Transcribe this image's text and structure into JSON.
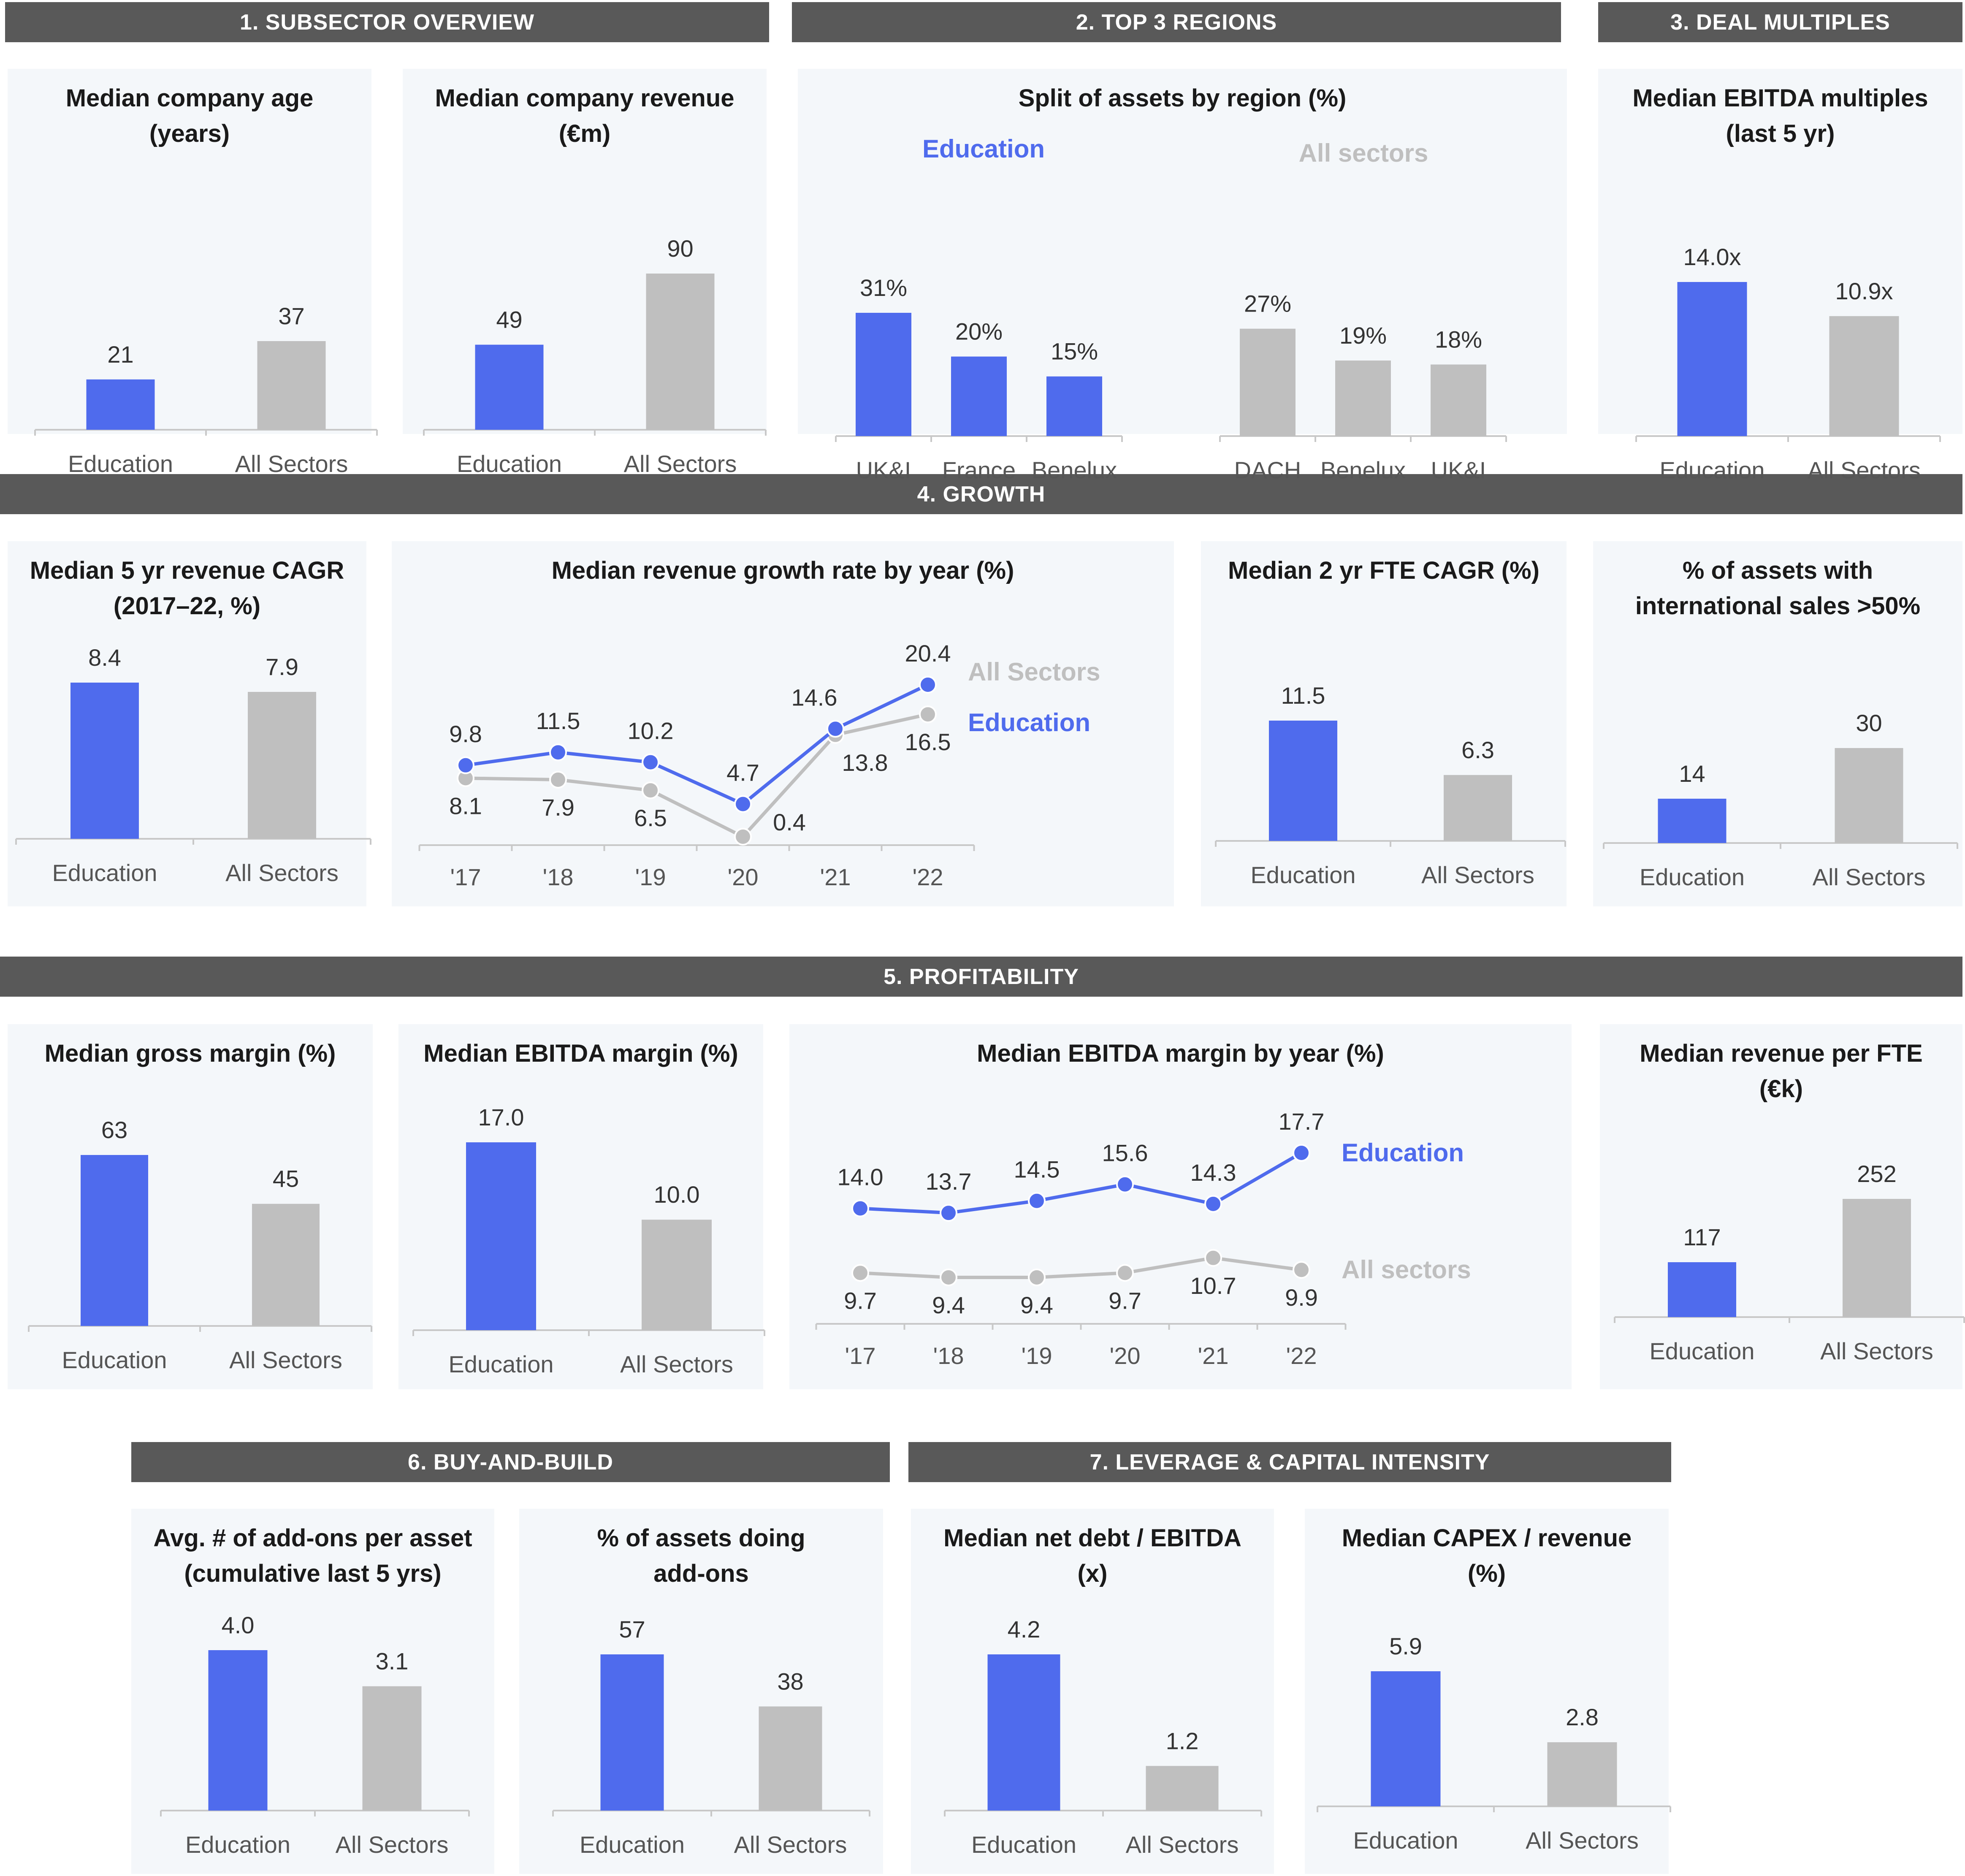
{
  "colors": {
    "education": "#4f6bed",
    "all": "#bfbfbf",
    "axis": "#c8c8c8",
    "header": "#595959",
    "panel": "#f4f7fa"
  },
  "headers": [
    {
      "id": "h1",
      "label": "1. SUBSECTOR OVERVIEW"
    },
    {
      "id": "h2",
      "label": "2. TOP 3 REGIONS"
    },
    {
      "id": "h3",
      "label": "3. DEAL MULTIPLES"
    },
    {
      "id": "h4",
      "label": "4. GROWTH"
    },
    {
      "id": "h5",
      "label": "5.  PROFITABILITY"
    },
    {
      "id": "h6",
      "label": "6. BUY-AND-BUILD"
    },
    {
      "id": "h7",
      "label": "7. LEVERAGE & CAPITAL INTENSITY"
    }
  ],
  "chart_data": [
    {
      "id": "c1",
      "type": "bar",
      "title": "Median company age\n(years)",
      "categories": [
        "Education",
        "All Sectors"
      ],
      "values": [
        21,
        37
      ],
      "labels": [
        "21",
        "37"
      ],
      "ylim": [
        0,
        37
      ]
    },
    {
      "id": "c2",
      "type": "bar",
      "title": "Median company revenue\n(€m)",
      "categories": [
        "Education",
        "All Sectors"
      ],
      "values": [
        49,
        90
      ],
      "labels": [
        "49",
        "90"
      ],
      "ylim": [
        0,
        90
      ]
    },
    {
      "id": "c3",
      "type": "bar",
      "title": "Split of assets by region (%)",
      "groups": [
        {
          "name": "Education",
          "categories": [
            "UK&I",
            "France",
            "Benelux"
          ],
          "values": [
            31,
            20,
            15
          ],
          "labels": [
            "31%",
            "20%",
            "15%"
          ]
        },
        {
          "name": "All sectors",
          "categories": [
            "DACH",
            "Benelux",
            "UK&I"
          ],
          "values": [
            27,
            19,
            18
          ],
          "labels": [
            "27%",
            "19%",
            "18%"
          ]
        }
      ],
      "ylim": [
        0,
        31
      ]
    },
    {
      "id": "c4",
      "type": "bar",
      "title": "Median EBITDA multiples\n(last 5 yr)",
      "categories": [
        "Education",
        "All Sectors"
      ],
      "values": [
        14.0,
        10.9
      ],
      "labels": [
        "14.0x",
        "10.9x"
      ],
      "ylim": [
        0,
        14
      ]
    },
    {
      "id": "c5",
      "type": "bar",
      "title": "Median 5 yr revenue CAGR\n(2017–22, %)",
      "categories": [
        "Education",
        "All Sectors"
      ],
      "values": [
        8.4,
        7.9
      ],
      "labels": [
        "8.4",
        "7.9"
      ],
      "ylim": [
        0,
        8.4
      ]
    },
    {
      "id": "c6",
      "type": "line",
      "title": "Median revenue growth rate by year (%)",
      "x": [
        "'17",
        "'18",
        "'19",
        "'20",
        "'21",
        "'22"
      ],
      "series": [
        {
          "name": "Education",
          "values": [
            9.8,
            11.5,
            10.2,
            4.7,
            14.6,
            20.4
          ],
          "labels": [
            "9.8",
            "11.5",
            "10.2",
            "4.7",
            "14.6",
            "20.4"
          ]
        },
        {
          "name": "All Sectors",
          "values": [
            8.1,
            7.9,
            6.5,
            0.4,
            13.8,
            16.5
          ],
          "labels": [
            "8.1",
            "7.9",
            "6.5",
            "0.4",
            "13.8",
            "16.5"
          ]
        }
      ],
      "ylim": [
        0.4,
        20.4
      ]
    },
    {
      "id": "c7",
      "type": "bar",
      "title": "Median 2 yr FTE CAGR (%)",
      "categories": [
        "Education",
        "All Sectors"
      ],
      "values": [
        11.5,
        6.3
      ],
      "labels": [
        "11.5",
        "6.3"
      ],
      "ylim": [
        0,
        11.5
      ]
    },
    {
      "id": "c8",
      "type": "bar",
      "title": "% of assets with\ninternational sales >50%",
      "categories": [
        "Education",
        "All Sectors"
      ],
      "values": [
        14,
        30
      ],
      "labels": [
        "14",
        "30"
      ],
      "ylim": [
        0,
        30
      ]
    },
    {
      "id": "c9",
      "type": "bar",
      "title": "Median gross margin (%)",
      "categories": [
        "Education",
        "All Sectors"
      ],
      "values": [
        63,
        45
      ],
      "labels": [
        "63",
        "45"
      ],
      "ylim": [
        0,
        63
      ]
    },
    {
      "id": "c10",
      "type": "bar",
      "title": "Median EBITDA margin (%)",
      "categories": [
        "Education",
        "All Sectors"
      ],
      "values": [
        17.0,
        10.0
      ],
      "labels": [
        "17.0",
        "10.0"
      ],
      "ylim": [
        0,
        17
      ]
    },
    {
      "id": "c11",
      "type": "line",
      "title": "Median EBITDA margin by year (%)",
      "x": [
        "'17",
        "'18",
        "'19",
        "'20",
        "'21",
        "'22"
      ],
      "series": [
        {
          "name": "Education",
          "values": [
            14.0,
            13.7,
            14.5,
            15.6,
            14.3,
            17.7
          ],
          "labels": [
            "14.0",
            "13.7",
            "14.5",
            "15.6",
            "14.3",
            "17.7"
          ]
        },
        {
          "name": "All sectors",
          "values": [
            9.7,
            9.4,
            9.4,
            9.7,
            10.7,
            9.9
          ],
          "labels": [
            "9.7",
            "9.4",
            "9.4",
            "9.7",
            "10.7",
            "9.9"
          ]
        }
      ],
      "ylim": [
        9.4,
        17.7
      ]
    },
    {
      "id": "c12",
      "type": "bar",
      "title": "Median revenue per FTE\n(€k)",
      "categories": [
        "Education",
        "All Sectors"
      ],
      "values": [
        117,
        252
      ],
      "labels": [
        "117",
        "252"
      ],
      "ylim": [
        0,
        252
      ]
    },
    {
      "id": "c13",
      "type": "bar",
      "title": "Avg. # of add-ons per asset\n(cumulative last 5 yrs)",
      "categories": [
        "Education",
        "All Sectors"
      ],
      "values": [
        4.0,
        3.1
      ],
      "labels": [
        "4.0",
        "3.1"
      ],
      "ylim": [
        0,
        4
      ]
    },
    {
      "id": "c14",
      "type": "bar",
      "title": "% of assets doing\nadd-ons",
      "categories": [
        "Education",
        "All Sectors"
      ],
      "values": [
        57,
        38
      ],
      "labels": [
        "57",
        "38"
      ],
      "ylim": [
        0,
        57
      ]
    },
    {
      "id": "c15",
      "type": "bar",
      "title": "Median net debt / EBITDA\n(x)",
      "categories": [
        "Education",
        "All Sectors"
      ],
      "values": [
        4.2,
        1.2
      ],
      "labels": [
        "4.2",
        "1.2"
      ],
      "ylim": [
        0,
        4.2
      ]
    },
    {
      "id": "c16",
      "type": "bar",
      "title": "Median CAPEX / revenue\n(%)",
      "categories": [
        "Education",
        "All Sectors"
      ],
      "values": [
        5.9,
        2.8
      ],
      "labels": [
        "5.9",
        "2.8"
      ],
      "ylim": [
        0,
        5.9
      ]
    }
  ]
}
